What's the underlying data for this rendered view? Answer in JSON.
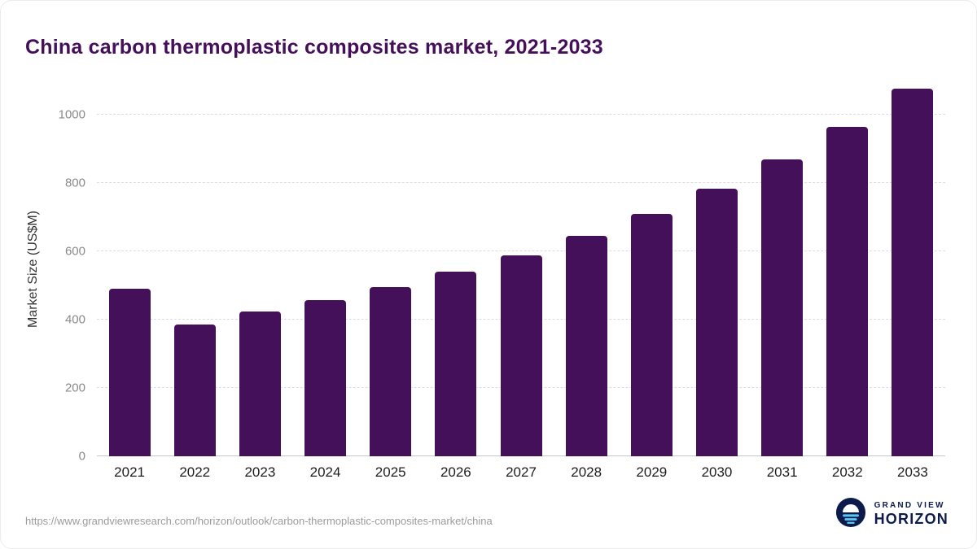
{
  "header": {
    "title": "China carbon thermoplastic composites market, 2021-2033"
  },
  "footer": {
    "source_url": "https://www.grandviewresearch.com/horizon/outlook/carbon-thermoplastic-composites-market/china",
    "logo_top": "GRAND VIEW",
    "logo_bottom": "HORIZON"
  },
  "colors": {
    "bar": "#45105A",
    "title": "#45105A",
    "logo_navy": "#0D1B4C",
    "logo_accent": "#5BC6F2"
  },
  "chart_data": {
    "type": "bar",
    "title": "China carbon thermoplastic composites market, 2021-2033",
    "categories": [
      "2021",
      "2022",
      "2023",
      "2024",
      "2025",
      "2026",
      "2027",
      "2028",
      "2029",
      "2030",
      "2031",
      "2032",
      "2033"
    ],
    "values": [
      490,
      385,
      425,
      458,
      495,
      542,
      588,
      645,
      710,
      785,
      870,
      965,
      1078
    ],
    "xlabel": "",
    "ylabel": "Market Size (US$M)",
    "ylim": [
      0,
      1120
    ],
    "yticks": [
      0,
      200,
      400,
      600,
      800,
      1000
    ],
    "grid": "horizontal dashed",
    "legend": "none"
  }
}
